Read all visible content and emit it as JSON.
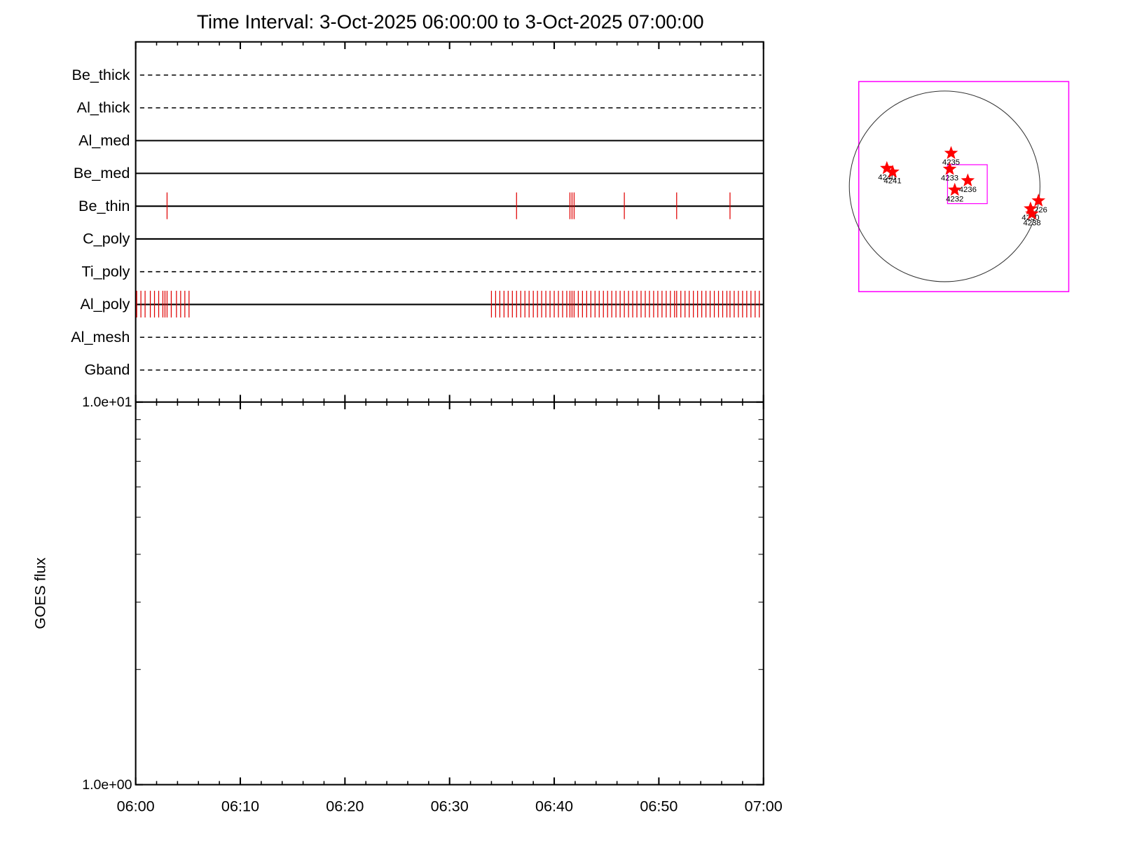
{
  "chart_data": {
    "type": "event-timeline",
    "title": "Time Interval:  3-Oct-2025 06:00:00 to  3-Oct-2025 07:00:00",
    "xlim": [
      0,
      60
    ],
    "xticks": [
      {
        "value": 0,
        "label": "06:00"
      },
      {
        "value": 10,
        "label": "06:10"
      },
      {
        "value": 20,
        "label": "06:20"
      },
      {
        "value": 30,
        "label": "06:30"
      },
      {
        "value": 40,
        "label": "06:40"
      },
      {
        "value": 50,
        "label": "06:50"
      },
      {
        "value": 60,
        "label": "07:00"
      }
    ],
    "xminorticks": [
      2,
      4,
      6,
      8,
      12,
      14,
      16,
      18,
      22,
      24,
      26,
      28,
      32,
      34,
      36,
      38,
      42,
      44,
      46,
      48,
      52,
      54,
      56,
      58
    ],
    "event_color": "#e00000",
    "rows": [
      {
        "name": "Be_thick",
        "style": "dashed",
        "events": []
      },
      {
        "name": "Al_thick",
        "style": "dashed",
        "events": []
      },
      {
        "name": "Al_med",
        "style": "solid",
        "events": []
      },
      {
        "name": "Be_med",
        "style": "solid",
        "events": []
      },
      {
        "name": "Be_thin",
        "style": "solid",
        "events": [
          3.0,
          36.4,
          41.5,
          41.7,
          41.9,
          46.7,
          51.7,
          56.8
        ]
      },
      {
        "name": "C_poly",
        "style": "solid",
        "events": []
      },
      {
        "name": "Ti_poly",
        "style": "dashed",
        "events": []
      },
      {
        "name": "Al_poly",
        "style": "solid",
        "events": [
          0.1,
          0.5,
          0.9,
          1.4,
          1.8,
          2.2,
          2.6,
          2.8,
          3.0,
          3.4,
          3.9,
          4.3,
          4.7,
          5.1,
          34.0,
          34.4,
          34.8,
          35.2,
          35.6,
          36.0,
          36.4,
          36.8,
          37.2,
          37.6,
          38.0,
          38.4,
          38.8,
          39.2,
          39.6,
          40.0,
          40.4,
          40.8,
          41.2,
          41.5,
          41.7,
          41.9,
          42.3,
          42.7,
          43.1,
          43.5,
          43.9,
          44.3,
          44.7,
          45.1,
          45.5,
          45.9,
          46.3,
          46.7,
          47.1,
          47.5,
          47.9,
          48.3,
          48.7,
          49.1,
          49.5,
          49.9,
          50.3,
          50.7,
          51.1,
          51.5,
          51.7,
          52.1,
          52.5,
          52.9,
          53.3,
          53.7,
          54.1,
          54.5,
          54.9,
          55.3,
          55.7,
          56.1,
          56.5,
          56.8,
          57.2,
          57.6,
          58.0,
          58.4,
          58.8,
          59.2,
          59.6
        ]
      },
      {
        "name": "Al_mesh",
        "style": "dashed",
        "events": []
      },
      {
        "name": "Gband",
        "style": "dashed",
        "events": []
      }
    ],
    "flux": {
      "ylabel": "GOES flux",
      "log_scale": true,
      "ylim": [
        1,
        10
      ],
      "yticks": [
        {
          "value": 1,
          "label": "1.0e+00"
        },
        {
          "value": 10,
          "label": "1.0e+01"
        }
      ],
      "yminorticks": [
        2,
        3,
        4,
        5,
        6,
        7,
        8,
        9
      ]
    },
    "map": {
      "xlim": [
        -865,
        1250
      ],
      "ylim": [
        -1060,
        1055
      ],
      "frame_color": "#ff00ff",
      "marker_color": "#ff0000",
      "disk_radius": 960,
      "fov": {
        "x": [
          29,
          429
        ],
        "y": [
          -174,
          218
        ]
      },
      "regions": [
        {
          "label": "4240",
          "x": -582,
          "y": 182
        },
        {
          "label": "4241",
          "x": -524,
          "y": 145
        },
        {
          "label": "4235",
          "x": 65,
          "y": 334
        },
        {
          "label": "4233",
          "x": 51,
          "y": 174
        },
        {
          "label": "4236",
          "x": 233,
          "y": 58
        },
        {
          "label": "4232",
          "x": 102,
          "y": -36
        },
        {
          "label": "4226",
          "x": 945,
          "y": -145
        },
        {
          "label": "4230",
          "x": 865,
          "y": -225
        },
        {
          "label": "4238",
          "x": 880,
          "y": -276
        }
      ]
    }
  }
}
